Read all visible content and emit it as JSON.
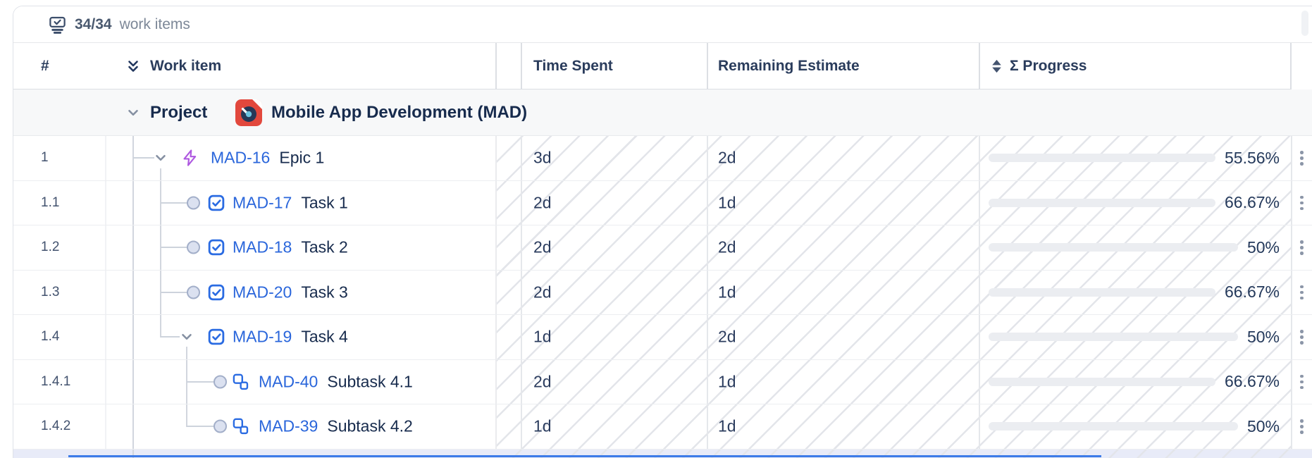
{
  "topbar": {
    "count": "34/34",
    "count_label": "work items"
  },
  "header": {
    "num": "#",
    "work_item": "Work item",
    "time_spent": "Time Spent",
    "remaining_estimate": "Remaining Estimate",
    "progress": "Σ Progress"
  },
  "project": {
    "type_label": "Project",
    "name": "Mobile App Development (MAD)"
  },
  "rows": [
    {
      "num": "1",
      "type": "epic",
      "key": "MAD-16",
      "summary": "Epic 1",
      "time": "3d",
      "remaining": "2d",
      "progress_label": "55.56%",
      "progress_pct": 55.56
    },
    {
      "num": "1.1",
      "type": "task",
      "key": "MAD-17",
      "summary": "Task 1",
      "time": "2d",
      "remaining": "1d",
      "progress_label": "66.67%",
      "progress_pct": 66.67
    },
    {
      "num": "1.2",
      "type": "task",
      "key": "MAD-18",
      "summary": "Task 2",
      "time": "2d",
      "remaining": "2d",
      "progress_label": "50%",
      "progress_pct": 50
    },
    {
      "num": "1.3",
      "type": "task",
      "key": "MAD-20",
      "summary": "Task 3",
      "time": "2d",
      "remaining": "1d",
      "progress_label": "66.67%",
      "progress_pct": 66.67
    },
    {
      "num": "1.4",
      "type": "task-parent",
      "key": "MAD-19",
      "summary": "Task 4",
      "time": "1d",
      "remaining": "2d",
      "progress_label": "50%",
      "progress_pct": 50
    },
    {
      "num": "1.4.1",
      "type": "subtask",
      "key": "MAD-40",
      "summary": "Subtask 4.1",
      "time": "2d",
      "remaining": "1d",
      "progress_label": "66.67%",
      "progress_pct": 66.67
    },
    {
      "num": "1.4.2",
      "type": "subtask",
      "key": "MAD-39",
      "summary": "Subtask 4.2",
      "time": "1d",
      "remaining": "1d",
      "progress_label": "50%",
      "progress_pct": 50
    }
  ],
  "colors": {
    "progress_bar": "#44546F",
    "progress_track": "#EBEDF1",
    "link_blue": "#2A66DB",
    "epic_purple": "#AE59E0",
    "task_blue": "#2A6BE2",
    "project_avatar_orange": "#E2483D",
    "hatch_line": "#E3E5EA",
    "selection_blue": "#3C7BE8",
    "partial_row_highlight": "#E8EBF8"
  },
  "icons": {
    "topbar": "work-items-stack-icon",
    "work_item_header": "collapse-all-double-chevron-icon",
    "progress_header": "sort-icon",
    "row_menu": "kebab-menu-icon"
  }
}
